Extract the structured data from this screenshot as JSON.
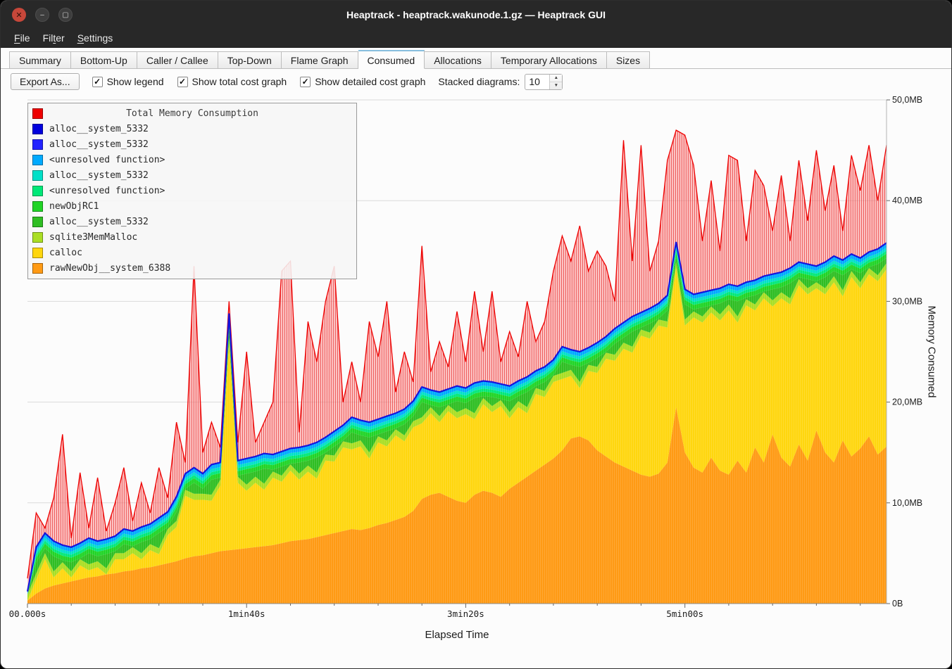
{
  "window": {
    "title": "Heaptrack - heaptrack.wakunode.1.gz — Heaptrack GUI"
  },
  "menu": {
    "items": [
      {
        "label": "File",
        "mnemonic": 0
      },
      {
        "label": "Filter",
        "mnemonic": 3
      },
      {
        "label": "Settings",
        "mnemonic": 0
      }
    ]
  },
  "tabs": {
    "active": "Consumed",
    "items": [
      "Summary",
      "Bottom-Up",
      "Caller / Callee",
      "Top-Down",
      "Flame Graph",
      "Consumed",
      "Allocations",
      "Temporary Allocations",
      "Sizes"
    ]
  },
  "toolbar": {
    "export_label": "Export As...",
    "checkboxes": [
      {
        "label": "Show legend",
        "checked": true
      },
      {
        "label": "Show total cost graph",
        "checked": true
      },
      {
        "label": "Show detailed cost graph",
        "checked": true
      }
    ],
    "stacked_label": "Stacked diagrams:",
    "stacked_value": "10"
  },
  "chart": {
    "legend": {
      "title": "Total Memory Consumption",
      "title_color": "#ee0000",
      "items": [
        {
          "color": "#0000dd",
          "label": "alloc__system_5332"
        },
        {
          "color": "#2222ff",
          "label": "alloc__system_5332"
        },
        {
          "color": "#00aaff",
          "label": "<unresolved function>"
        },
        {
          "color": "#00e0c8",
          "label": "alloc__system_5332"
        },
        {
          "color": "#00e878",
          "label": "<unresolved function>"
        },
        {
          "color": "#21d426",
          "label": "newObjRC1"
        },
        {
          "color": "#2fbe23",
          "label": "alloc__system_5332"
        },
        {
          "color": "#aade24",
          "label": "sqlite3MemMalloc"
        },
        {
          "color": "#ffd60e",
          "label": "calloc"
        },
        {
          "color": "#ff9a14",
          "label": "rawNewObj__system_6388"
        }
      ]
    }
  },
  "chart_data": {
    "type": "area",
    "title": "Total Memory Consumption",
    "xlabel": "Elapsed Time",
    "ylabel": "Memory Consumed",
    "x_unit": "seconds",
    "x_start": 0,
    "x_step": 4,
    "ylim_mb": [
      0,
      50
    ],
    "grid": "horizontal",
    "legend_position": "top-left",
    "x_ticks": [
      {
        "t": 0,
        "label": "00.000s"
      },
      {
        "t": 100,
        "label": "1min40s"
      },
      {
        "t": 200,
        "label": "3min20s"
      },
      {
        "t": 300,
        "label": "5min00s"
      }
    ],
    "y_ticks": [
      {
        "mb": 0,
        "label": "0B"
      },
      {
        "mb": 10,
        "label": "10,0MB"
      },
      {
        "mb": 20,
        "label": "20,0MB"
      },
      {
        "mb": 30,
        "label": "30,0MB"
      },
      {
        "mb": 40,
        "label": "40,0MB"
      },
      {
        "mb": 50,
        "label": "50,0MB"
      }
    ],
    "series": [
      {
        "name": "total_memory_consumption",
        "color": "#ee0000",
        "values_mb": [
          2.5,
          9,
          7.5,
          10.5,
          16.8,
          6.5,
          13,
          7.5,
          12.5,
          7.2,
          10,
          13.5,
          8.2,
          12,
          9,
          13.5,
          10.5,
          18,
          14,
          33.5,
          15,
          18,
          15.5,
          30,
          16,
          25,
          16,
          18,
          20,
          33,
          34,
          17,
          28,
          24,
          30,
          33.5,
          20,
          24,
          20,
          28,
          24.5,
          30,
          21,
          25,
          22,
          35.5,
          23,
          26,
          23.5,
          29,
          24,
          31,
          25,
          31,
          24,
          27,
          24.5,
          30,
          26,
          28,
          33,
          36.5,
          34,
          37.5,
          33,
          35,
          33.5,
          30,
          46,
          34,
          45.5,
          33,
          36,
          44,
          47,
          46.5,
          43.5,
          36,
          42,
          35,
          44.5,
          44,
          36,
          43,
          41.5,
          37,
          42.5,
          36,
          44,
          38,
          45,
          39,
          43.5,
          37,
          44.5,
          41,
          45.5,
          40,
          45.5
        ]
      },
      {
        "name": "stacked_allocations_top",
        "color": "#1515dd",
        "values_mb": [
          1.2,
          5.6,
          7,
          6.2,
          5.8,
          5.6,
          6,
          6.5,
          6.2,
          6.4,
          6.7,
          7.4,
          7.2,
          7.6,
          7.9,
          8.5,
          9.1,
          10.6,
          12.9,
          13.5,
          12.9,
          13.8,
          14,
          28.8,
          14.2,
          14.4,
          14.6,
          14.9,
          14.8,
          15.1,
          15.4,
          15.5,
          15.7,
          16,
          16.5,
          17.1,
          17.7,
          18.5,
          18.2,
          18,
          18.3,
          18.6,
          18.9,
          19.3,
          20.1,
          21.5,
          21.2,
          21,
          21.3,
          21.6,
          21.4,
          21.9,
          22.1,
          22,
          21.8,
          21.6,
          22.1,
          22.5,
          23.1,
          23.5,
          24.2,
          25.5,
          25.2,
          25,
          25.4,
          25.9,
          26.5,
          27.3,
          27.9,
          28.5,
          28.9,
          29.3,
          29.8,
          30.6,
          35.9,
          31.2,
          30.7,
          30.9,
          31.1,
          31.3,
          31.7,
          31.5,
          31.9,
          32.1,
          32.5,
          32.7,
          32.9,
          33.3,
          33.9,
          33.7,
          33.5,
          33.9,
          34.5,
          34.1,
          34.7,
          34.3,
          34.9,
          35.2,
          35.8
        ]
      },
      {
        "name": "rawNewObj__system_6388",
        "color": "#ff9a14",
        "values_mb": [
          0.3,
          1,
          1.5,
          1.8,
          2,
          2.2,
          2.4,
          2.6,
          2.7,
          2.9,
          3,
          3.2,
          3.3,
          3.5,
          3.6,
          3.8,
          4,
          4.2,
          4.5,
          4.7,
          4.8,
          5,
          5.2,
          5.3,
          5.4,
          5.5,
          5.6,
          5.7,
          5.8,
          6,
          6.2,
          6.3,
          6.4,
          6.6,
          6.8,
          7,
          7.2,
          7.4,
          7.3,
          7.5,
          7.8,
          8,
          8.3,
          8.6,
          9.2,
          10.4,
          10.8,
          11,
          10.6,
          10.2,
          10,
          10.8,
          11.2,
          11,
          10.6,
          11.4,
          12,
          12.6,
          13.2,
          13.8,
          14.4,
          15.2,
          16.4,
          16.6,
          16.2,
          15.2,
          14.6,
          14,
          13.6,
          13.2,
          12.8,
          12.6,
          12.9,
          14,
          19.5,
          15,
          13.5,
          13,
          14.5,
          13.2,
          12.8,
          14.2,
          13,
          15.5,
          14,
          16.8,
          14.5,
          13.6,
          15.8,
          14.2,
          17.2,
          15,
          14,
          16.2,
          14.6,
          15.4,
          16.6,
          14.8,
          15.6
        ]
      }
    ],
    "derived_bands": {
      "yellow_gap_cycle": [
        2.2,
        3.2,
        2.6,
        3.6,
        2.3,
        3
      ],
      "sqlite_thickness_mb": 0.6,
      "thin_band_offsets_mb": [
        1.5,
        1.05,
        0.75,
        0.45
      ],
      "band_colors_bottom_up": [
        "#ff9a14",
        "#ffd60e",
        "#aade24",
        "#2fbe23",
        "#21d426",
        "#00e878",
        "#00e0c8",
        "#00aaff"
      ]
    }
  }
}
